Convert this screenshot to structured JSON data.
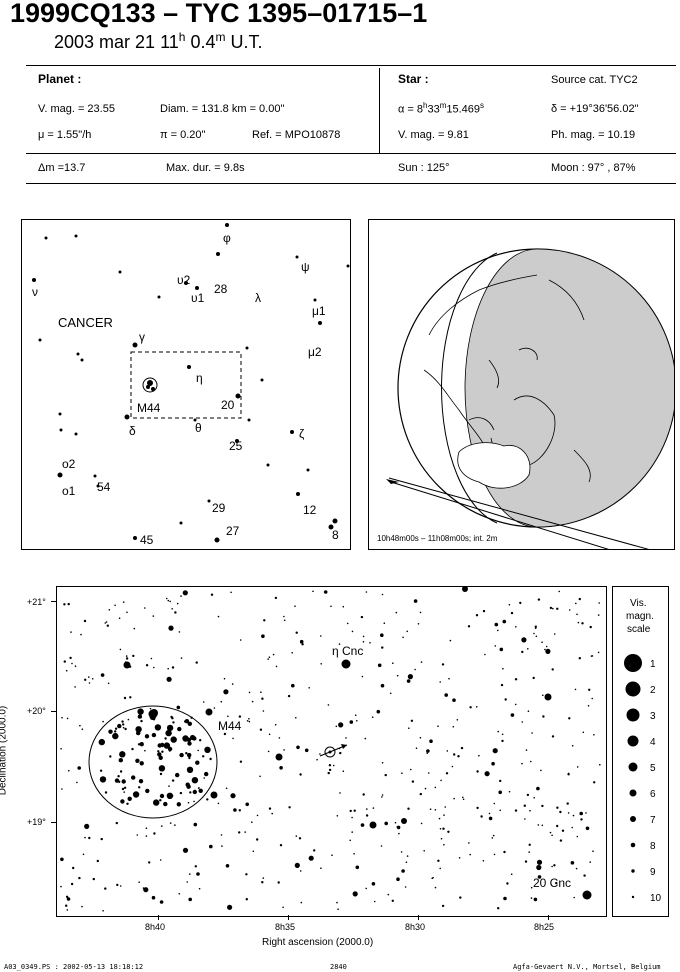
{
  "header": {
    "title": "1999CQ133  –  TYC 1395–01715–1",
    "date_prefix": "2003 mar 21  11",
    "date_h": "h",
    "date_mid": " 0.4",
    "date_m": "m",
    "date_suffix": " U.T."
  },
  "planet": {
    "heading": "Planet :",
    "vmag": "V. mag. = 23.55",
    "diam": "Diam. = 131.8 km = 0.00\"",
    "mu": "μ =  1.55\"/h",
    "pi": "π =  0.20\"",
    "ref": "Ref. = MPO10878"
  },
  "star": {
    "heading": "Star :",
    "source": "Source cat.  TYC2",
    "alpha_prefix": "α =  8",
    "alpha_h": "h",
    "alpha_mid": "33",
    "alpha_m": "m",
    "alpha_s": "15.469",
    "alpha_s_sup": "s",
    "delta": "δ = +19°36'56.02\"",
    "vmag": "V. mag. =  9.81",
    "phmag": "Ph. mag. = 10.19"
  },
  "summary": {
    "dm": "Δm =13.7",
    "maxdur": "Max. dur. = 9.8s",
    "sun": "Sun : 125°",
    "moon": "Moon :  97° , 87%"
  },
  "finder": {
    "constellation": "CANCER",
    "labels": [
      {
        "text": "φ"
      },
      {
        "text": "ψ"
      },
      {
        "text": "ν"
      },
      {
        "text": "υ2"
      },
      {
        "text": "υ1"
      },
      {
        "text": "28"
      },
      {
        "text": "λ"
      },
      {
        "text": "μ1"
      },
      {
        "text": "μ2"
      },
      {
        "text": "γ"
      },
      {
        "text": "η"
      },
      {
        "text": "M44"
      },
      {
        "text": "20"
      },
      {
        "text": "δ"
      },
      {
        "text": "θ"
      },
      {
        "text": "25"
      },
      {
        "text": "ζ"
      },
      {
        "text": "ο2"
      },
      {
        "text": "ο1"
      },
      {
        "text": "54"
      },
      {
        "text": "29"
      },
      {
        "text": "12"
      },
      {
        "text": "27"
      },
      {
        "text": "8"
      },
      {
        "text": "45"
      }
    ]
  },
  "globe": {
    "caption": "10h48m00s – 11h08m00s; int.  2m"
  },
  "chart": {
    "dec_ticks": [
      "+21°",
      "+20°",
      "+19°"
    ],
    "ra_ticks": [
      "8h40",
      "8h35",
      "8h30",
      "8h25"
    ],
    "xlabel": "Right ascension (2000.0)",
    "ylabel": "Declination (2000.0)",
    "labels": {
      "eta": "η  Cnc",
      "m44": "M44",
      "cnc20": "20 Cnc"
    }
  },
  "scale": {
    "title1": "Vis.",
    "title2": "magn.",
    "title3": "scale",
    "levels": [
      "1",
      "2",
      "3",
      "4",
      "5",
      "6",
      "7",
      "8",
      "9",
      "10"
    ]
  },
  "footer": {
    "left": "A03_0349.PS : 2002-05-13 18:18:12",
    "mid": "2840",
    "right": "Agfa-Gevaert N.V., Mortsel, Belgium"
  },
  "colors": {
    "ink": "#000000",
    "land": "#cccccc",
    "paper": "#ffffff"
  }
}
